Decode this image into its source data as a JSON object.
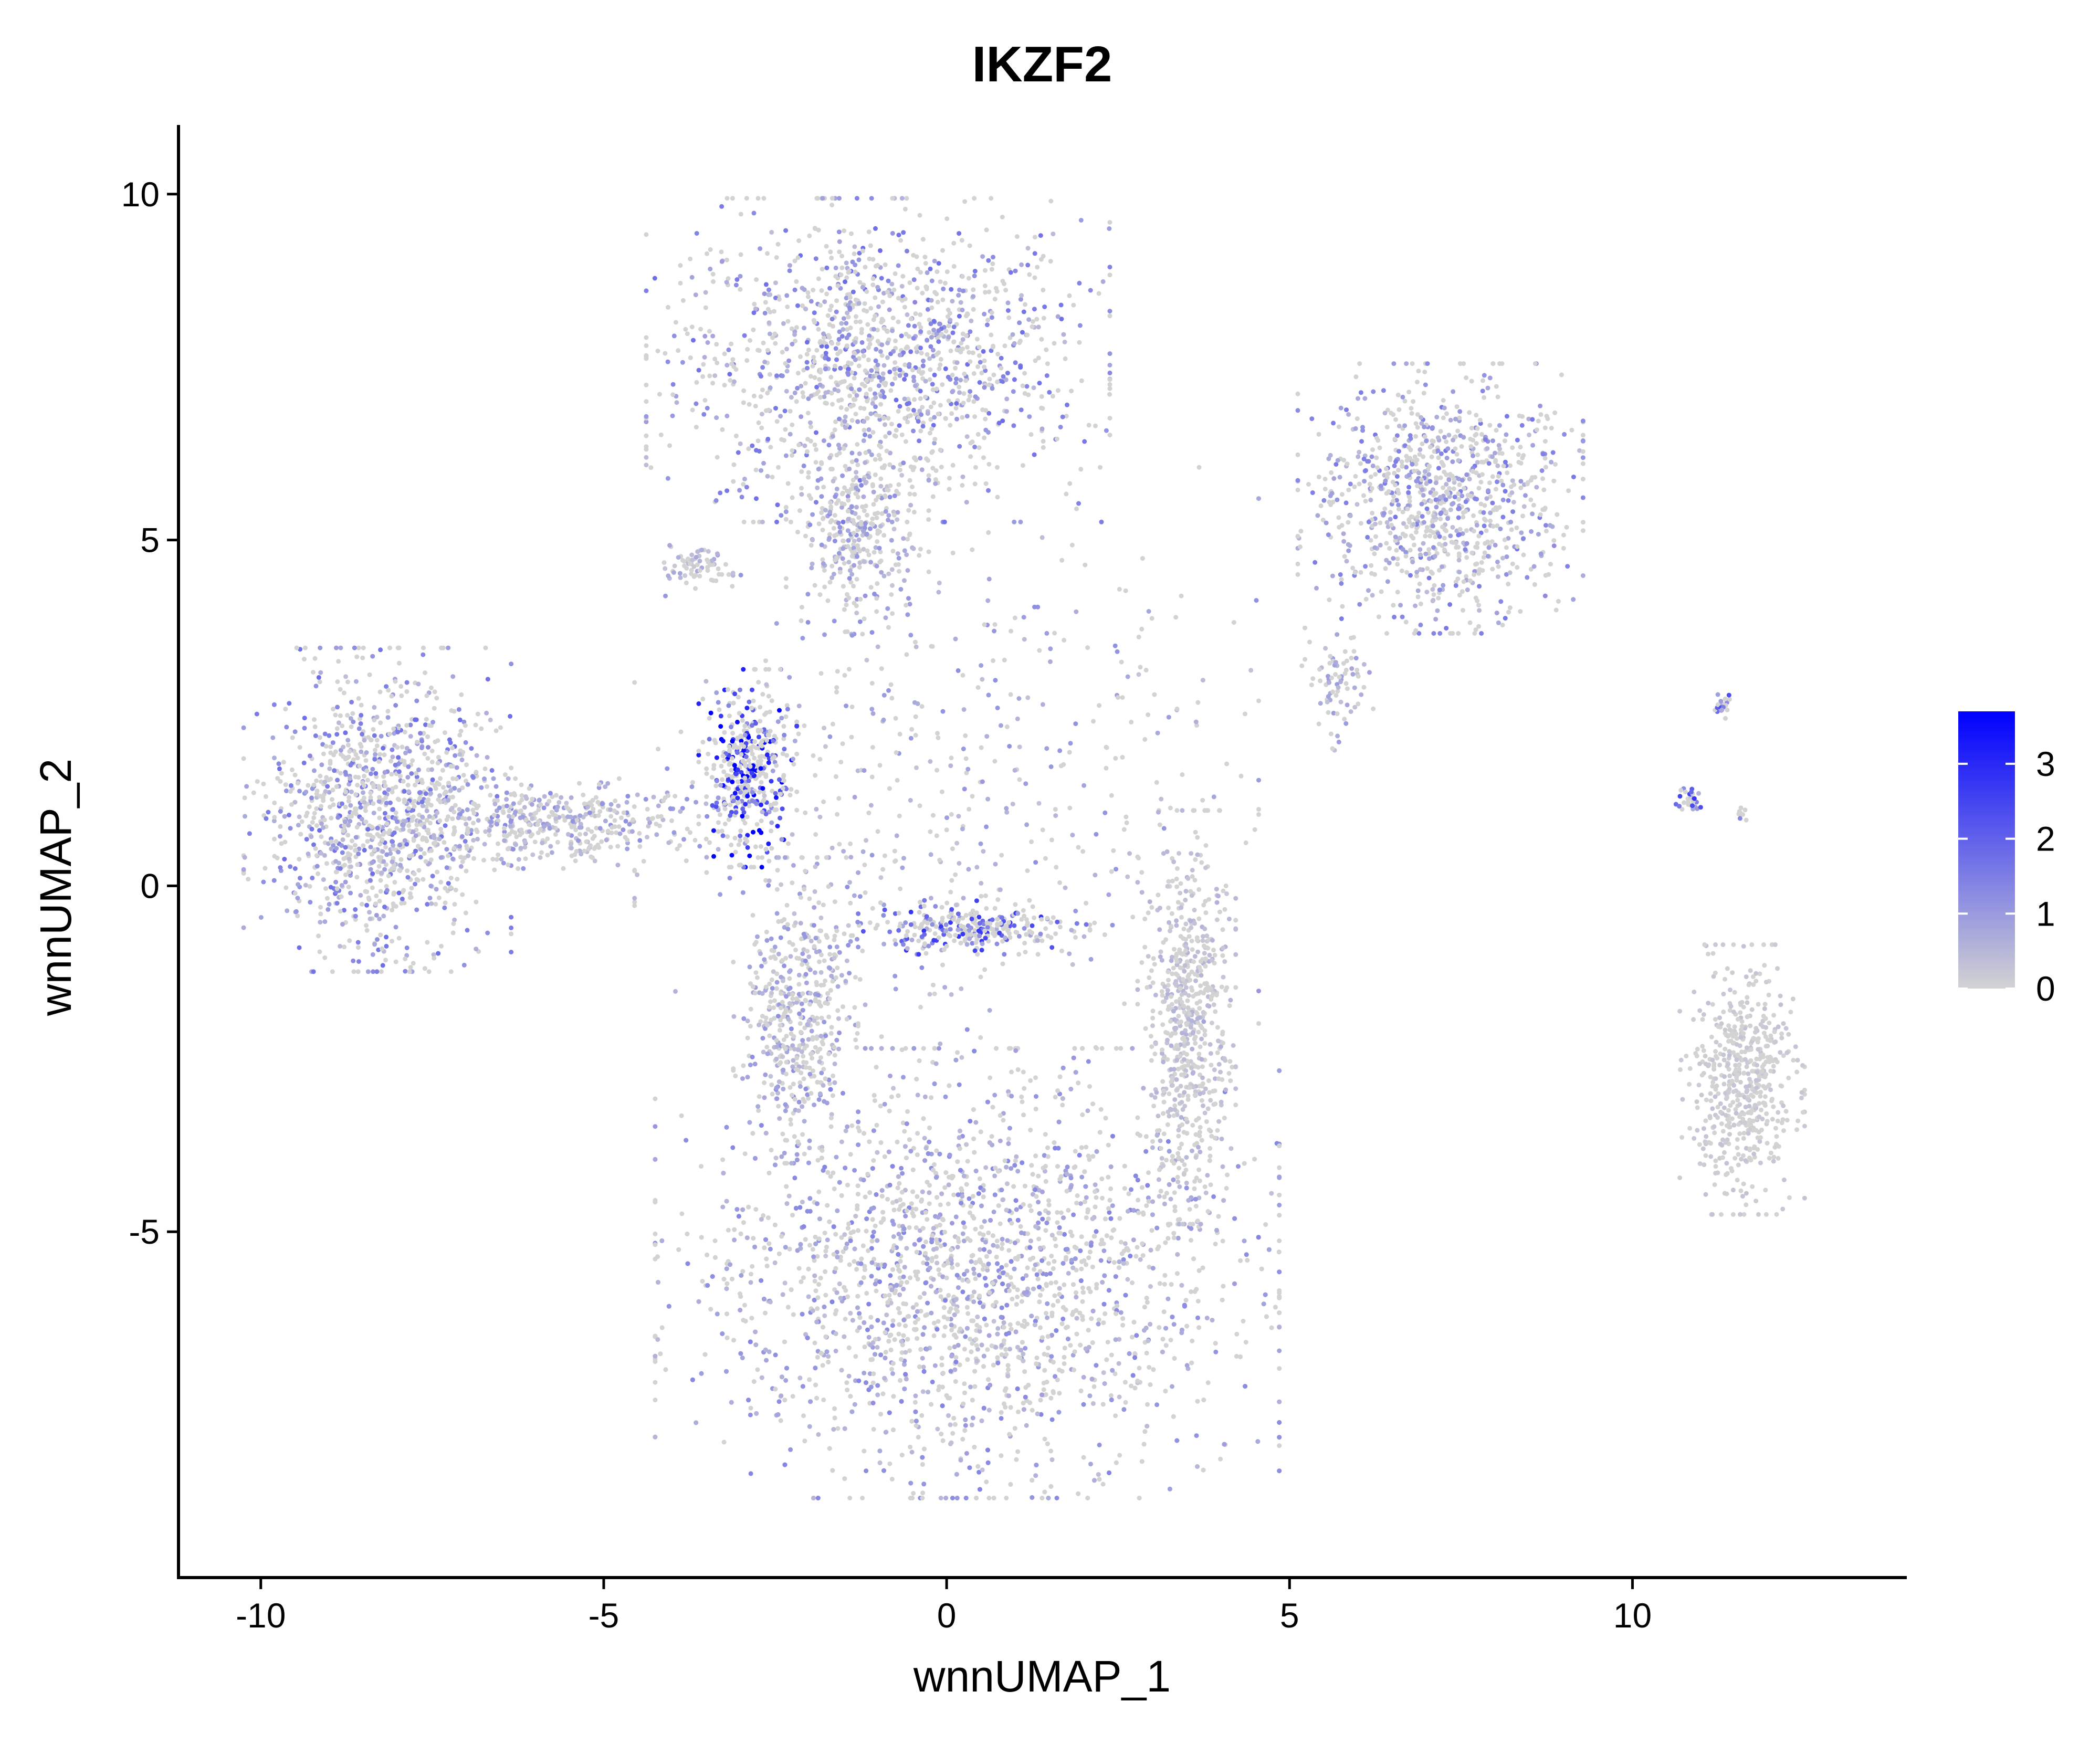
{
  "chart_data": {
    "type": "scatter",
    "title": "IKZF2",
    "xlabel": "wnnUMAP_1",
    "ylabel": "wnnUMAP_2",
    "xlim": [
      -11.2,
      14
    ],
    "ylim": [
      -10,
      11
    ],
    "x_ticks": [
      -10,
      -5,
      0,
      5,
      10
    ],
    "y_ticks": [
      -5,
      0,
      5,
      10
    ],
    "x_tick_labels": [
      "-10",
      "-5",
      "0",
      "5",
      "10"
    ],
    "y_tick_labels": [
      "-5",
      "0",
      "5",
      "10"
    ],
    "grid": false,
    "legend": {
      "type": "colorbar",
      "placement": "right",
      "min": 0,
      "max": 3.7,
      "ticks": [
        0,
        1,
        2,
        3
      ],
      "tick_labels": [
        "0",
        "1",
        "2",
        "3"
      ],
      "low_color": "#D3D3D3",
      "high_color": "#0000FF"
    },
    "clusters": [
      {
        "name": "top",
        "cx": -1.0,
        "cy": 7.6,
        "rx": 2.6,
        "ry": 1.8,
        "n": 1300,
        "expr": 0.9
      },
      {
        "name": "top-stem",
        "cx": -1.3,
        "cy": 5.2,
        "rx": 0.8,
        "ry": 1.2,
        "n": 350,
        "expr": 0.6
      },
      {
        "name": "left-blob",
        "cx": -8.3,
        "cy": 1.1,
        "rx": 1.5,
        "ry": 1.8,
        "n": 1100,
        "expr": 0.9
      },
      {
        "name": "left-tail",
        "cx": -5.8,
        "cy": 0.9,
        "rx": 1.9,
        "ry": 0.5,
        "n": 450,
        "expr": 0.6
      },
      {
        "name": "purple-focus",
        "cx": -2.9,
        "cy": 1.7,
        "rx": 0.55,
        "ry": 1.1,
        "n": 420,
        "expr": 2.0
      },
      {
        "name": "small-left",
        "cx": -3.7,
        "cy": 4.6,
        "rx": 0.45,
        "ry": 0.25,
        "n": 70,
        "expr": 0.4
      },
      {
        "name": "bottom",
        "cx": 0.3,
        "cy": -5.6,
        "rx": 3.5,
        "ry": 2.5,
        "n": 3200,
        "expr": 0.7
      },
      {
        "name": "right-arm",
        "cx": 3.5,
        "cy": -1.9,
        "rx": 0.55,
        "ry": 2.3,
        "n": 650,
        "expr": 0.3
      },
      {
        "name": "middle-band",
        "cx": 0.4,
        "cy": -0.6,
        "rx": 1.3,
        "ry": 0.3,
        "n": 260,
        "expr": 1.4
      },
      {
        "name": "middle-stem",
        "cx": -2.2,
        "cy": -1.8,
        "rx": 0.7,
        "ry": 1.7,
        "n": 500,
        "expr": 0.6
      },
      {
        "name": "right-top",
        "cx": 7.2,
        "cy": 5.6,
        "rx": 1.6,
        "ry": 1.5,
        "n": 950,
        "expr": 0.8
      },
      {
        "name": "right-top-tail",
        "cx": 5.7,
        "cy": 3.0,
        "rx": 0.4,
        "ry": 0.8,
        "n": 80,
        "expr": 0.5
      },
      {
        "name": "far-right-bottom",
        "cx": 11.6,
        "cy": -2.8,
        "rx": 0.7,
        "ry": 1.5,
        "n": 550,
        "expr": 0.15
      },
      {
        "name": "far-right-small-a",
        "cx": 10.8,
        "cy": 1.25,
        "rx": 0.15,
        "ry": 0.12,
        "n": 30,
        "expr": 1.4
      },
      {
        "name": "far-right-small-b",
        "cx": 11.3,
        "cy": 2.6,
        "rx": 0.1,
        "ry": 0.15,
        "n": 20,
        "expr": 1.2
      },
      {
        "name": "far-right-small-c",
        "cx": 11.6,
        "cy": 1.05,
        "rx": 0.08,
        "ry": 0.1,
        "n": 12,
        "expr": 0.8
      },
      {
        "name": "scatter-background",
        "cx": 0.0,
        "cy": 1.5,
        "rx": 3.5,
        "ry": 3.5,
        "n": 500,
        "expr": 0.6
      }
    ]
  }
}
